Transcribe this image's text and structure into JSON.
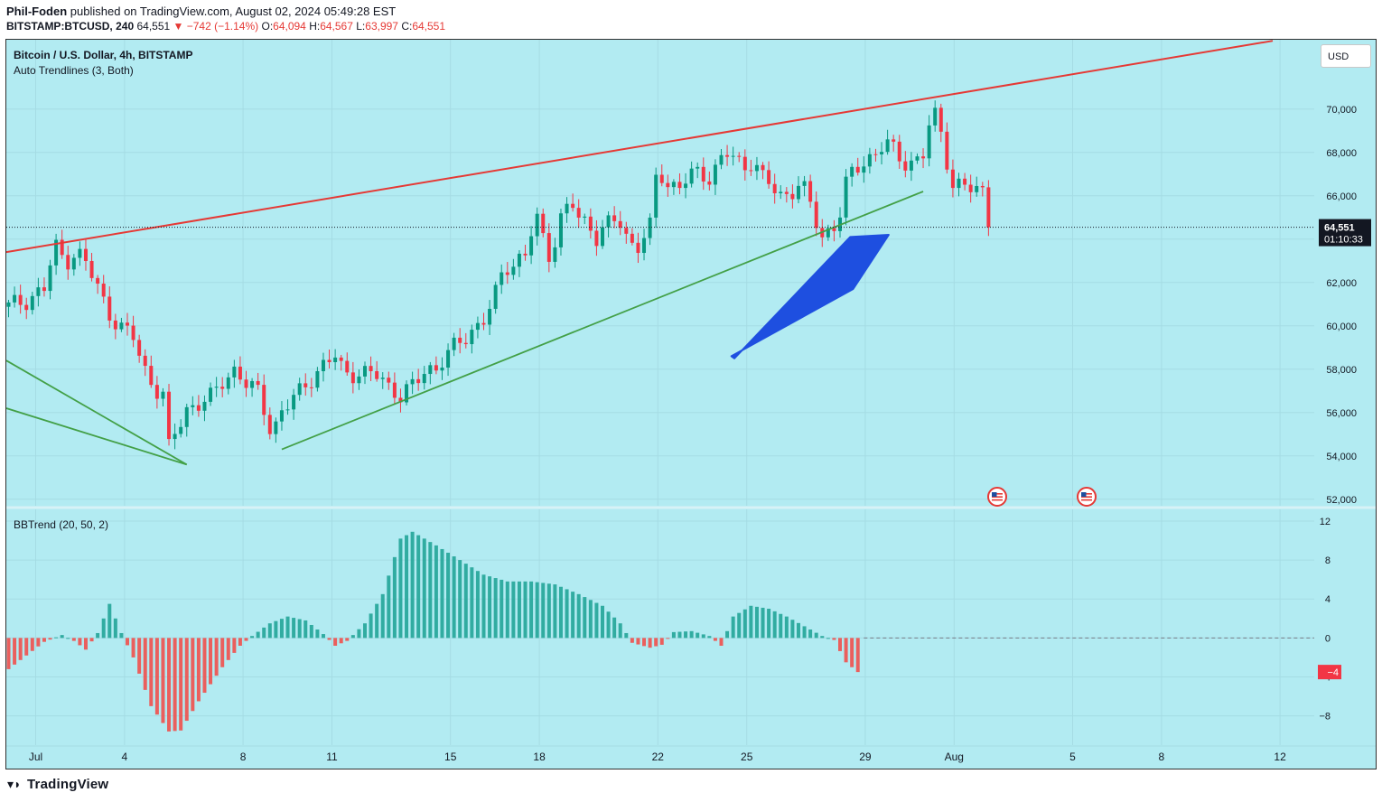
{
  "header": {
    "publisher": "Phil-Foden",
    "published_text": "published on TradingView.com, August 02, 2024 05:49:28 EST",
    "symbol": "BITSTAMP:BTCUSD, 240",
    "last": "64,551",
    "change": "−742 (−1.14%)",
    "open_label": "O:",
    "open": "64,094",
    "high_label": "H:",
    "high": "64,567",
    "low_label": "L:",
    "low": "63,997",
    "close_label": "C:",
    "close": "64,551"
  },
  "pane": {
    "title": "Bitcoin / U.S. Dollar, 4h, BITSTAMP",
    "indicator": "Auto Trendlines (3, Both)",
    "currency_button": "USD",
    "price_badge": "64,551",
    "countdown_badge": "01:10:33",
    "osc_title": "BBTrend (20, 50, 2)",
    "osc_badge": "−4"
  },
  "footer": {
    "brand": "TradingView"
  },
  "colors": {
    "background": "#b2ebf2",
    "up": "#089981",
    "down": "#f23645",
    "resistance": "#e53935",
    "support": "#43a047",
    "arrow": "#1e4fe0",
    "osc_pos": "#26a69a",
    "osc_neg": "#ef5350"
  },
  "chart_data": [
    {
      "type": "candlestick",
      "symbol": "BTCUSD",
      "interval": "4h",
      "ylim": [
        51700,
        73200
      ],
      "y_ticks": [
        "52,000",
        "54,000",
        "56,000",
        "58,000",
        "60,000",
        "62,000",
        "64,000",
        "66,000",
        "68,000",
        "70,000"
      ],
      "x_ticks": [
        {
          "label": "Jul",
          "day": 1
        },
        {
          "label": "4",
          "day": 4
        },
        {
          "label": "8",
          "day": 8
        },
        {
          "label": "11",
          "day": 11
        },
        {
          "label": "15",
          "day": 15
        },
        {
          "label": "18",
          "day": 18
        },
        {
          "label": "22",
          "day": 22
        },
        {
          "label": "25",
          "day": 25
        },
        {
          "label": "29",
          "day": 29
        },
        {
          "label": "Aug",
          "day": 32
        },
        {
          "label": "5",
          "day": 36
        },
        {
          "label": "8",
          "day": 39
        },
        {
          "label": "12",
          "day": 43
        }
      ],
      "last_price": 64551,
      "close_anchors": [
        [
          0.0,
          60900
        ],
        [
          0.5,
          61200
        ],
        [
          1.0,
          61700
        ],
        [
          1.3,
          63700
        ],
        [
          1.6,
          63000
        ],
        [
          1.9,
          63400
        ],
        [
          2.2,
          62800
        ],
        [
          2.5,
          61800
        ],
        [
          2.8,
          60700
        ],
        [
          3.1,
          59900
        ],
        [
          3.5,
          59500
        ],
        [
          3.8,
          58100
        ],
        [
          4.1,
          57100
        ],
        [
          4.4,
          56700
        ],
        [
          4.5,
          54300
        ],
        [
          4.7,
          55200
        ],
        [
          5.0,
          56200
        ],
        [
          5.4,
          56400
        ],
        [
          5.7,
          56700
        ],
        [
          6.0,
          57500
        ],
        [
          6.3,
          58000
        ],
        [
          6.7,
          57200
        ],
        [
          7.0,
          57000
        ],
        [
          7.2,
          56100
        ],
        [
          7.4,
          55000
        ],
        [
          7.6,
          55800
        ],
        [
          7.8,
          56200
        ],
        [
          8.0,
          56700
        ],
        [
          8.4,
          57500
        ],
        [
          8.8,
          58000
        ],
        [
          9.2,
          58700
        ],
        [
          9.4,
          57900
        ],
        [
          9.7,
          57800
        ],
        [
          10.0,
          57700
        ],
        [
          10.4,
          57800
        ],
        [
          10.7,
          57200
        ],
        [
          11.0,
          56700
        ],
        [
          11.3,
          57100
        ],
        [
          11.7,
          58100
        ],
        [
          12.0,
          58000
        ],
        [
          12.3,
          58600
        ],
        [
          12.7,
          59400
        ],
        [
          13.0,
          59800
        ],
        [
          13.3,
          60100
        ],
        [
          13.6,
          61100
        ],
        [
          13.9,
          62800
        ],
        [
          14.2,
          62900
        ],
        [
          14.5,
          63200
        ],
        [
          14.8,
          65100
        ],
        [
          15.0,
          64100
        ],
        [
          15.2,
          63200
        ],
        [
          15.5,
          64900
        ],
        [
          15.8,
          65700
        ],
        [
          16.0,
          65000
        ],
        [
          16.3,
          64700
        ],
        [
          16.5,
          64100
        ],
        [
          16.8,
          64600
        ],
        [
          17.1,
          65000
        ],
        [
          17.4,
          63900
        ],
        [
          17.7,
          63700
        ],
        [
          18.0,
          64500
        ],
        [
          18.2,
          67300
        ],
        [
          18.5,
          66500
        ],
        [
          18.8,
          66500
        ],
        [
          19.1,
          66800
        ],
        [
          19.4,
          67100
        ],
        [
          19.7,
          66800
        ],
        [
          19.9,
          67500
        ],
        [
          20.1,
          68100
        ],
        [
          20.3,
          67700
        ],
        [
          20.6,
          67300
        ],
        [
          20.9,
          67700
        ],
        [
          21.1,
          67000
        ],
        [
          21.4,
          66500
        ],
        [
          21.6,
          65800
        ],
        [
          21.9,
          66200
        ],
        [
          22.2,
          66600
        ],
        [
          22.4,
          66100
        ],
        [
          22.6,
          65100
        ],
        [
          22.8,
          63900
        ],
        [
          23.0,
          64400
        ],
        [
          23.3,
          65000
        ],
        [
          23.5,
          66500
        ],
        [
          23.7,
          67100
        ],
        [
          24.0,
          67500
        ],
        [
          24.3,
          68000
        ],
        [
          24.6,
          68500
        ],
        [
          24.8,
          68100
        ],
        [
          25.1,
          67500
        ],
        [
          25.4,
          67600
        ],
        [
          25.7,
          68000
        ],
        [
          25.9,
          69800
        ],
        [
          26.1,
          69400
        ],
        [
          26.3,
          67900
        ],
        [
          26.5,
          66500
        ],
        [
          26.8,
          66600
        ],
        [
          27.1,
          66100
        ],
        [
          27.3,
          66200
        ],
        [
          27.6,
          66100
        ],
        [
          27.9,
          66000
        ],
        [
          28.1,
          64800
        ],
        [
          28.3,
          63900
        ],
        [
          28.5,
          64200
        ],
        [
          28.7,
          63200
        ],
        [
          28.9,
          64000
        ],
        [
          29.1,
          64700
        ],
        [
          29.3,
          64551
        ]
      ]
    },
    {
      "type": "bar",
      "name": "BBTrend",
      "ylim": [
        -11,
        13.2
      ],
      "y_ticks": [
        "−8",
        "−4",
        "0",
        "4",
        "8",
        "12"
      ],
      "last_value": -3.5,
      "value_anchors": [
        [
          0,
          -3.2
        ],
        [
          3,
          -1.8
        ],
        [
          6,
          -0.4
        ],
        [
          9,
          0.3
        ],
        [
          11,
          -0.3
        ],
        [
          13,
          -1.2
        ],
        [
          15,
          0.5
        ],
        [
          17,
          3.5
        ],
        [
          19,
          0.5
        ],
        [
          21,
          -2
        ],
        [
          24,
          -7
        ],
        [
          27,
          -9.6
        ],
        [
          29,
          -9.5
        ],
        [
          32,
          -6.5
        ],
        [
          36,
          -3
        ],
        [
          39,
          -0.8
        ],
        [
          41,
          0.2
        ],
        [
          44,
          1.5
        ],
        [
          47,
          2.2
        ],
        [
          50,
          1.8
        ],
        [
          53,
          0.4
        ],
        [
          55,
          -0.8
        ],
        [
          57,
          -0.3
        ],
        [
          60,
          1.5
        ],
        [
          63,
          4.5
        ],
        [
          66,
          10.2
        ],
        [
          68,
          10.9
        ],
        [
          72,
          9.5
        ],
        [
          76,
          8.0
        ],
        [
          80,
          6.5
        ],
        [
          84,
          5.8
        ],
        [
          88,
          5.8
        ],
        [
          92,
          5.5
        ],
        [
          96,
          4.5
        ],
        [
          100,
          3.3
        ],
        [
          103,
          1.5
        ],
        [
          105,
          -0.5
        ],
        [
          108,
          -1
        ],
        [
          110,
          -0.7
        ],
        [
          112,
          0.6
        ],
        [
          115,
          0.7
        ],
        [
          118,
          0.2
        ],
        [
          120,
          -0.8
        ],
        [
          122,
          2.2
        ],
        [
          125,
          3.3
        ],
        [
          128,
          3.0
        ],
        [
          131,
          2.2
        ],
        [
          134,
          1.2
        ],
        [
          137,
          0.2
        ],
        [
          139,
          -0.2
        ],
        [
          141,
          -2.5
        ],
        [
          143,
          -3.5
        ]
      ]
    }
  ]
}
